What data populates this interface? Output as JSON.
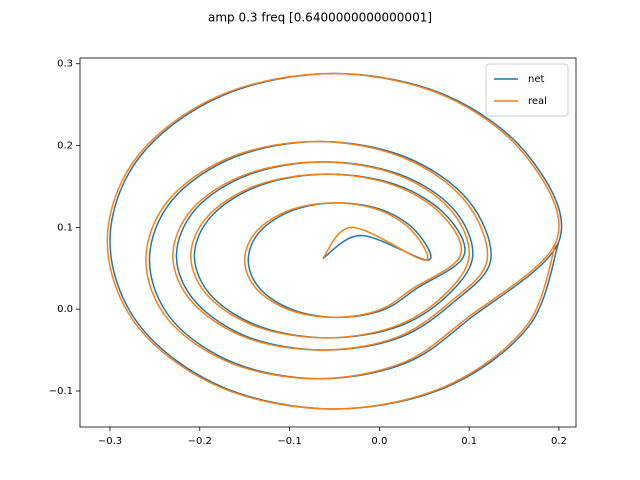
{
  "chart_data": {
    "type": "line",
    "title": "amp 0.3 freq [0.6400000000000001]",
    "xlim": [
      -0.3334,
      0.219
    ],
    "ylim": [
      -0.144,
      0.307
    ],
    "xticks": [
      {
        "value": -0.3,
        "label": "−0.3"
      },
      {
        "value": -0.2,
        "label": "−0.2"
      },
      {
        "value": -0.1,
        "label": "−0.1"
      },
      {
        "value": 0,
        "label": "0.0"
      },
      0.1,
      0.2
    ],
    "yticks": [
      {
        "value": -0.1,
        "label": "−0.1"
      },
      {
        "value": 0,
        "label": "0.0"
      },
      0.1,
      0.2,
      0.3
    ],
    "legend": "upper right",
    "series": [
      {
        "name": "net",
        "color": "#1f77b4",
        "x": [
          -0.063,
          -0.02,
          0.054,
          0.041,
          0.004,
          -0.046,
          -0.096,
          -0.133,
          -0.146,
          -0.133,
          -0.096,
          -0.046,
          0.004,
          0.041,
          0.094,
          0.074,
          0.019,
          -0.056,
          -0.131,
          -0.186,
          -0.206,
          -0.186,
          -0.131,
          -0.056,
          0.019,
          0.074,
          0.104,
          0.082,
          0.022,
          -0.061,
          -0.144,
          -0.204,
          -0.226,
          -0.204,
          -0.144,
          -0.061,
          0.022,
          0.082,
          0.124,
          0.099,
          0.029,
          -0.066,
          -0.161,
          -0.231,
          -0.256,
          -0.231,
          -0.161,
          -0.066,
          0.029,
          0.099,
          0.2,
          0.167,
          0.075,
          -0.05,
          -0.175,
          -0.267,
          -0.3,
          -0.267,
          -0.175,
          -0.05,
          0.075,
          0.167,
          0.2
        ],
        "y": [
          0.062,
          0.09,
          0.06,
          0.095,
          0.121,
          0.13,
          0.121,
          0.095,
          0.06,
          0.025,
          -0.001,
          -0.01,
          -0.001,
          0.025,
          0.065,
          0.115,
          0.152,
          0.165,
          0.152,
          0.115,
          0.065,
          0.015,
          -0.022,
          -0.035,
          -0.022,
          0.015,
          0.065,
          0.123,
          0.165,
          0.18,
          0.165,
          0.123,
          0.065,
          0.008,
          -0.035,
          -0.05,
          -0.035,
          0.008,
          0.06,
          0.133,
          0.186,
          0.205,
          0.186,
          0.133,
          0.06,
          -0.013,
          -0.066,
          -0.085,
          -0.066,
          -0.013,
          0.083,
          0.186,
          0.261,
          0.288,
          0.261,
          0.186,
          0.083,
          -0.02,
          -0.095,
          -0.122,
          -0.095,
          -0.02,
          0.083
        ]
      },
      {
        "name": "real",
        "color": "#ff7f0e",
        "x": [
          -0.063,
          -0.03,
          0.05,
          0.037,
          0.0,
          -0.05,
          -0.1,
          -0.137,
          -0.15,
          -0.137,
          -0.1,
          -0.05,
          0.0,
          0.037,
          0.09,
          0.07,
          0.015,
          -0.06,
          -0.135,
          -0.19,
          -0.21,
          -0.19,
          -0.135,
          -0.06,
          0.015,
          0.07,
          0.1,
          0.078,
          0.018,
          -0.065,
          -0.148,
          -0.208,
          -0.23,
          -0.208,
          -0.148,
          -0.065,
          0.018,
          0.078,
          0.12,
          0.095,
          0.025,
          -0.07,
          -0.165,
          -0.235,
          -0.26,
          -0.235,
          -0.165,
          -0.07,
          0.025,
          0.095,
          0.197,
          0.164,
          0.072,
          -0.053,
          -0.178,
          -0.27,
          -0.303,
          -0.27,
          -0.178,
          -0.053,
          0.072,
          0.164,
          0.197
        ],
        "y": [
          0.062,
          0.1,
          0.06,
          0.095,
          0.121,
          0.13,
          0.121,
          0.095,
          0.06,
          0.025,
          -0.001,
          -0.01,
          -0.001,
          0.025,
          0.065,
          0.115,
          0.152,
          0.165,
          0.152,
          0.115,
          0.065,
          0.015,
          -0.022,
          -0.035,
          -0.022,
          0.015,
          0.065,
          0.123,
          0.165,
          0.18,
          0.165,
          0.123,
          0.065,
          0.008,
          -0.035,
          -0.05,
          -0.035,
          0.008,
          0.06,
          0.133,
          0.186,
          0.205,
          0.186,
          0.133,
          0.06,
          -0.013,
          -0.066,
          -0.085,
          -0.066,
          -0.013,
          0.083,
          0.186,
          0.261,
          0.288,
          0.261,
          0.186,
          0.083,
          -0.02,
          -0.095,
          -0.122,
          -0.095,
          -0.02,
          0.083
        ]
      }
    ]
  }
}
